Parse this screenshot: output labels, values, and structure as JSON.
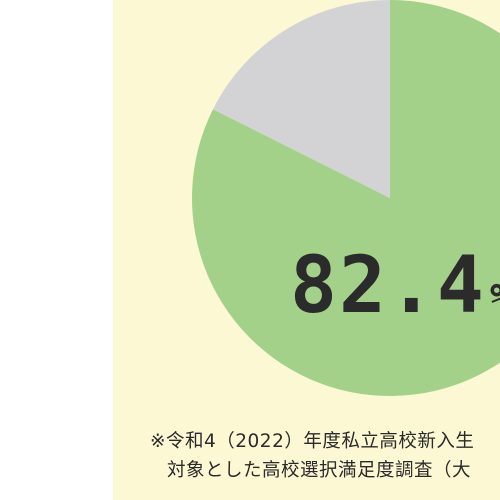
{
  "chart_data": {
    "type": "pie",
    "slices": [
      {
        "value": 82.4,
        "color": "#a3d18a"
      },
      {
        "value": 17.6,
        "color": "#d3d3d6"
      }
    ],
    "value_label": "82.4",
    "value_unit": "%"
  },
  "footnote": {
    "line1": "※令和4（2022）年度私立高校新入生",
    "line2": "対象とした高校選択満足度調査（大"
  },
  "colors": {
    "panel": "#fdf8d4",
    "satisfied": "#a3d18a",
    "other": "#d3d3d6",
    "label": "#2b2b2b"
  }
}
